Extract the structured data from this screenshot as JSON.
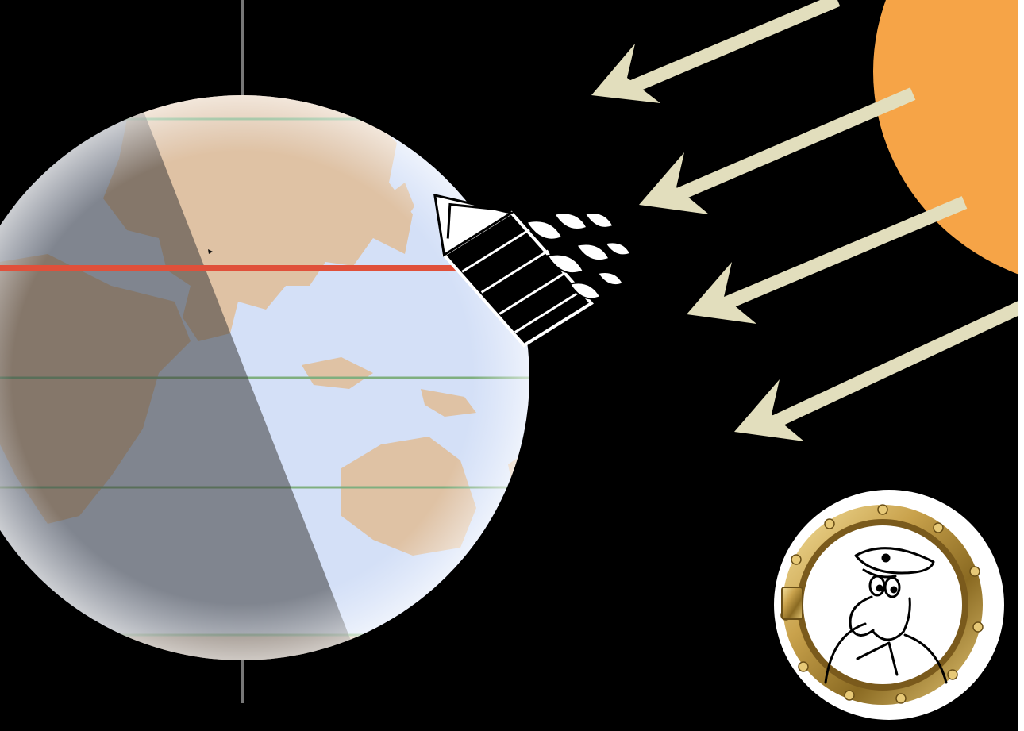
{
  "scene": {
    "background": "#000000",
    "sun": {
      "color": "#F6A447"
    },
    "sunlight_rays": {
      "count": 4,
      "color": "#E2DEBD"
    },
    "earth": {
      "ocean_color": "#D4E0F7",
      "land_color": "#DFC2A4",
      "night_overlay_color": "#3A3A3A",
      "axis_color": "#777777",
      "equator_color": "#E0503A",
      "latitude_line_color": "#7FAF7F"
    },
    "ship": {
      "icon": "sailing-ship-icon",
      "color": "#FFFFFF"
    },
    "porthole": {
      "icon": "porthole-captain-icon",
      "frame_color": "#C9A24C",
      "inner_color": "#FFFFFF"
    }
  }
}
